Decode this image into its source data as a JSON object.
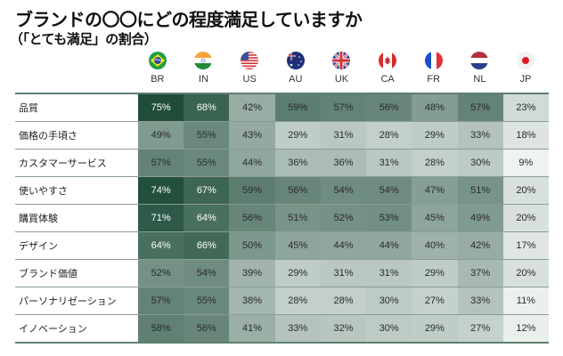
{
  "header": {
    "title": "ブランドの〇〇にどの程度満足していますか",
    "subtitle": "（「とても満足」の割合）"
  },
  "countries": [
    {
      "code": "BR",
      "flag": "brazil-flag-icon"
    },
    {
      "code": "IN",
      "flag": "india-flag-icon"
    },
    {
      "code": "US",
      "flag": "usa-flag-icon"
    },
    {
      "code": "AU",
      "flag": "australia-flag-icon"
    },
    {
      "code": "UK",
      "flag": "uk-flag-icon"
    },
    {
      "code": "CA",
      "flag": "canada-flag-icon"
    },
    {
      "code": "FR",
      "flag": "france-flag-icon"
    },
    {
      "code": "NL",
      "flag": "netherlands-flag-icon"
    },
    {
      "code": "JP",
      "flag": "japan-flag-icon"
    }
  ],
  "rows": [
    {
      "label": "品質",
      "values": [
        "75%",
        "68%",
        "42%",
        "59%",
        "57%",
        "56%",
        "48%",
        "57%",
        "23%"
      ]
    },
    {
      "label": "価格の手頃さ",
      "values": [
        "49%",
        "55%",
        "43%",
        "29%",
        "31%",
        "28%",
        "29%",
        "33%",
        "18%"
      ]
    },
    {
      "label": "カスタマーサービス",
      "values": [
        "57%",
        "55%",
        "44%",
        "36%",
        "36%",
        "31%",
        "28%",
        "30%",
        "9%"
      ]
    },
    {
      "label": "使いやすさ",
      "values": [
        "74%",
        "67%",
        "59%",
        "56%",
        "54%",
        "54%",
        "47%",
        "51%",
        "20%"
      ]
    },
    {
      "label": "購買体験",
      "values": [
        "71%",
        "64%",
        "56%",
        "51%",
        "52%",
        "53%",
        "45%",
        "49%",
        "20%"
      ]
    },
    {
      "label": "デザイン",
      "values": [
        "64%",
        "66%",
        "50%",
        "45%",
        "44%",
        "44%",
        "40%",
        "42%",
        "17%"
      ]
    },
    {
      "label": "ブランド価値",
      "values": [
        "52%",
        "54%",
        "39%",
        "29%",
        "31%",
        "31%",
        "29%",
        "37%",
        "20%"
      ]
    },
    {
      "label": "パーソナリゼーション",
      "values": [
        "57%",
        "55%",
        "38%",
        "28%",
        "28%",
        "30%",
        "27%",
        "33%",
        "11%"
      ]
    },
    {
      "label": "イノベーション",
      "values": [
        "58%",
        "56%",
        "41%",
        "33%",
        "32%",
        "30%",
        "29%",
        "27%",
        "12%"
      ]
    }
  ],
  "colors": {
    "scale_dark": "#1f4d3a",
    "scale_light": "#eef2f0",
    "text_dark": "#2a2a2a",
    "text_light": "#ffffff"
  },
  "chart_data": {
    "type": "heatmap",
    "title": "ブランドの〇〇にどの程度満足していますか",
    "subtitle": "（「とても満足」の割合）",
    "x": [
      "BR",
      "IN",
      "US",
      "AU",
      "UK",
      "CA",
      "FR",
      "NL",
      "JP"
    ],
    "y": [
      "品質",
      "価格の手頃さ",
      "カスタマーサービス",
      "使いやすさ",
      "購買体験",
      "デザイン",
      "ブランド価値",
      "パーソナリゼーション",
      "イノベーション"
    ],
    "values": [
      [
        75,
        68,
        42,
        59,
        57,
        56,
        48,
        57,
        23
      ],
      [
        49,
        55,
        43,
        29,
        31,
        28,
        29,
        33,
        18
      ],
      [
        57,
        55,
        44,
        36,
        36,
        31,
        28,
        30,
        9
      ],
      [
        74,
        67,
        59,
        56,
        54,
        54,
        47,
        51,
        20
      ],
      [
        71,
        64,
        56,
        51,
        52,
        53,
        45,
        49,
        20
      ],
      [
        64,
        66,
        50,
        45,
        44,
        44,
        40,
        42,
        17
      ],
      [
        52,
        54,
        39,
        29,
        31,
        31,
        29,
        37,
        20
      ],
      [
        57,
        55,
        38,
        28,
        28,
        30,
        27,
        33,
        11
      ],
      [
        58,
        56,
        41,
        33,
        32,
        30,
        29,
        27,
        12
      ]
    ],
    "unit": "%",
    "color_scale": [
      "#eef2f0",
      "#1f4d3a"
    ]
  }
}
